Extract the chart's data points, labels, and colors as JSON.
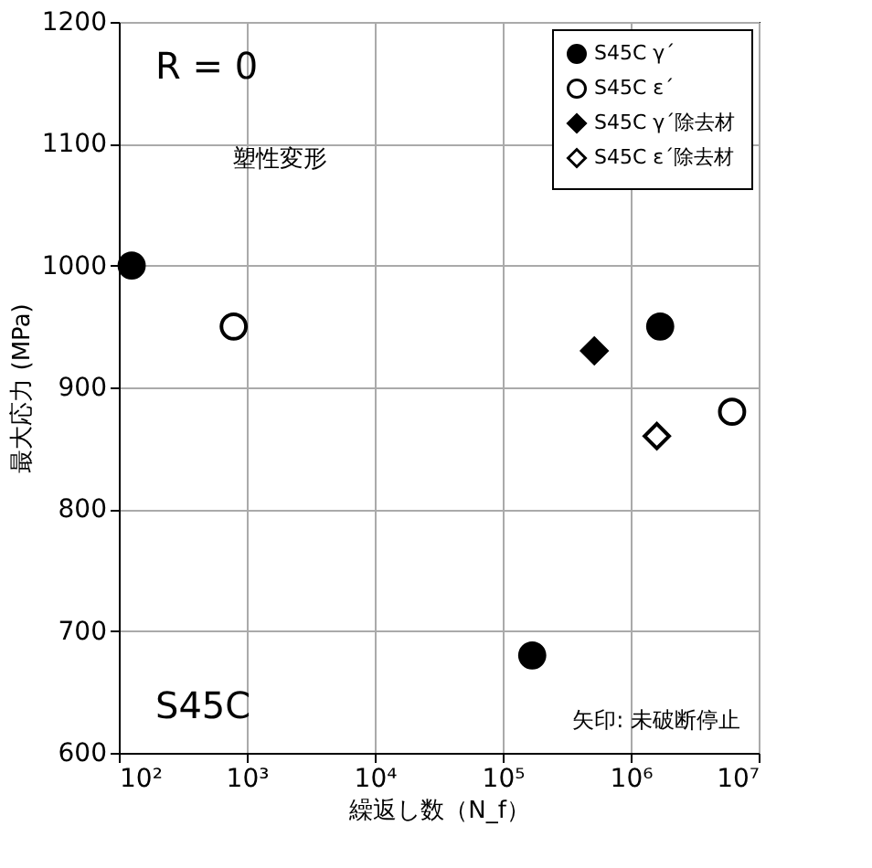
{
  "chart_data": {
    "type": "scatter",
    "xlabel": "繰返し数（N_f）",
    "ylabel": "最大応力 (MPa)",
    "log": "x",
    "xlim": [
      100,
      10000000
    ],
    "ylim": [
      600,
      1200
    ],
    "xticks": [
      {
        "value": 100,
        "label": "10²"
      },
      {
        "value": 1000,
        "label": "10³"
      },
      {
        "value": 10000,
        "label": "10⁴"
      },
      {
        "value": 100000,
        "label": "10⁵"
      },
      {
        "value": 1000000,
        "label": "10⁶"
      },
      {
        "value": 10000000,
        "label": "10⁷"
      }
    ],
    "yticks": [
      600,
      700,
      800,
      900,
      1000,
      1100,
      1200
    ],
    "grid": true,
    "legend": "top right",
    "series": [
      {
        "name": "S45C γ´",
        "color": "#000000",
        "marker": "circle",
        "x": [
          126,
          1700000,
          170000
        ],
        "values": [
          1000,
          950,
          680
        ]
      },
      {
        "name": "S45C ε´",
        "color": "#ffffff",
        "marker": "circle",
        "x": [
          790,
          6200000
        ],
        "values": [
          950,
          880
        ]
      },
      {
        "name": "S45C γ´除去材",
        "color": "#000000",
        "marker": "diamond",
        "x": [
          520000
        ],
        "values": [
          930
        ]
      },
      {
        "name": "S45C ε´除去材",
        "color": "#ffffff",
        "marker": "diamond",
        "x": [
          1600000
        ],
        "values": [
          860
        ]
      }
    ],
    "annotations": [
      "R = 0",
      "塑性変形",
      "S45C",
      "矢印: 未破断停止"
    ]
  }
}
